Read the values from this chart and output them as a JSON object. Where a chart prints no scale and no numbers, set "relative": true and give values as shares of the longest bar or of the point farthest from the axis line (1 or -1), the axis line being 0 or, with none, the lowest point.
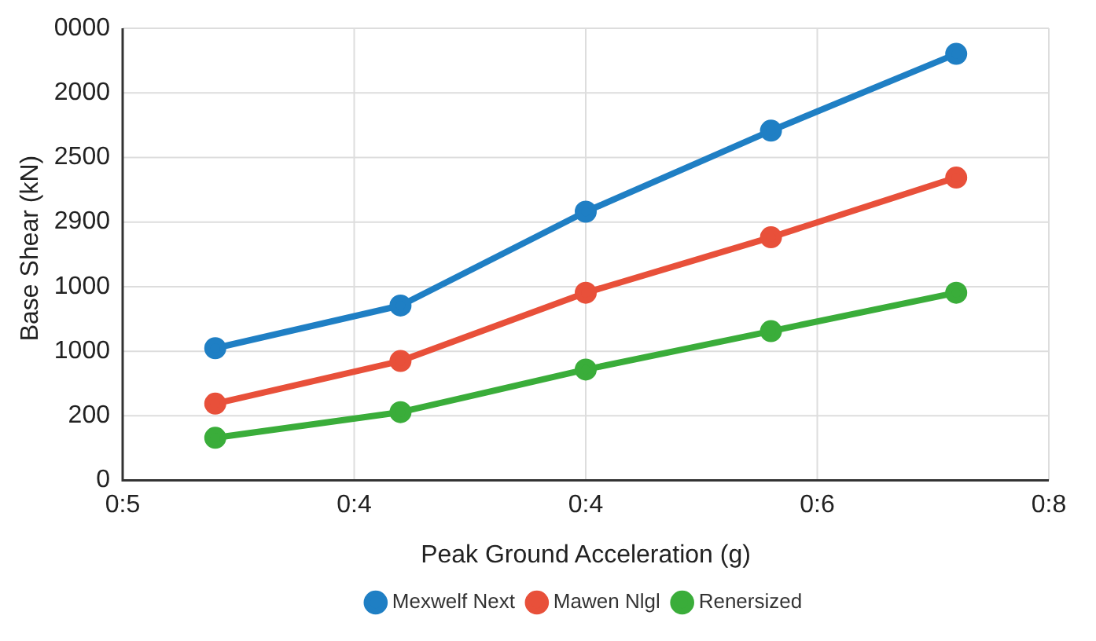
{
  "chart_data": {
    "type": "line",
    "xlabel": "Peak Ground Acceleration (g)",
    "ylabel": "Base Shear (kN)",
    "relative": true,
    "categories": [
      null,
      null,
      null,
      null,
      null
    ],
    "annotations": [
      "0",
      "200",
      "1000",
      "1000",
      "2900",
      "2500",
      "2000",
      "0000",
      "0:5",
      "0:4",
      "0:4",
      "0:6",
      "0:8"
    ],
    "series": [
      {
        "name": "Mexwelf Next",
        "color": "#1f7fc4",
        "values": [
          0.31,
          0.41,
          0.63,
          0.82,
          1
        ]
      },
      {
        "name": "Mawen Nlgl",
        "color": "#e8503a",
        "values": [
          0.18,
          0.28,
          0.44,
          0.57,
          0.71
        ]
      },
      {
        "name": "Renersized",
        "color": "#3aad3a",
        "values": [
          0.1,
          0.16,
          0.26,
          0.35,
          0.44
        ]
      }
    ],
    "grid": true,
    "legend": "bottom",
    "marker": "circle",
    "line_style": "solid"
  }
}
